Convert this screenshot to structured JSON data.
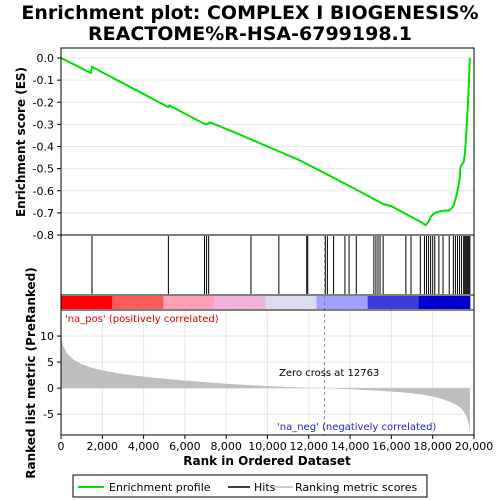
{
  "title_line1": "Enrichment plot: COMPLEX I BIOGENESIS%",
  "title_line2": "REACTOME%R-HSA-6799198.1",
  "colors": {
    "profile": "#00e000",
    "hits": "#000000",
    "metric": "#bebebe",
    "pos_label": "#dd0000",
    "neg_label": "#2222cc"
  },
  "chart_data": [
    {
      "type": "line",
      "panel": "enrichment",
      "ylabel": "Enrichment score (ES)",
      "ylim": [
        -0.8,
        0.0
      ],
      "yticks": [
        "0.0",
        "-0.1",
        "-0.2",
        "-0.3",
        "-0.4",
        "-0.5",
        "-0.6",
        "-0.7",
        "-0.8"
      ],
      "ytick_values": [
        0.0,
        -0.1,
        -0.2,
        -0.3,
        -0.4,
        -0.5,
        -0.6,
        -0.7,
        -0.8
      ],
      "xlim": [
        0,
        20000
      ],
      "grid": true,
      "series": [
        {
          "name": "Enrichment profile",
          "x": [
            0,
            1450,
            1500,
            5200,
            5250,
            6900,
            7050,
            7150,
            7200,
            8500,
            10000,
            11500,
            12763,
            14000,
            15000,
            15300,
            15600,
            16000,
            16300,
            16700,
            17000,
            17400,
            17650,
            17800,
            17900,
            18100,
            18300,
            18500,
            18800,
            19000,
            19100,
            19200,
            19300,
            19350,
            19500,
            19550,
            19600,
            19650,
            19700,
            19750,
            19800
          ],
          "y": [
            0.0,
            -0.068,
            -0.04,
            -0.222,
            -0.214,
            -0.296,
            -0.3,
            -0.296,
            -0.29,
            -0.34,
            -0.4,
            -0.46,
            -0.52,
            -0.58,
            -0.63,
            -0.645,
            -0.66,
            -0.67,
            -0.685,
            -0.705,
            -0.72,
            -0.74,
            -0.755,
            -0.74,
            -0.718,
            -0.7,
            -0.695,
            -0.69,
            -0.69,
            -0.67,
            -0.64,
            -0.6,
            -0.55,
            -0.49,
            -0.47,
            -0.44,
            -0.38,
            -0.3,
            -0.22,
            -0.12,
            0.0
          ]
        }
      ]
    },
    {
      "type": "hits",
      "panel": "hits",
      "name": "Hits",
      "x": [
        1500,
        5200,
        6950,
        7050,
        7150,
        9200,
        10550,
        11900,
        11950,
        12800,
        12900,
        13200,
        13750,
        13950,
        14300,
        15150,
        15250,
        15350,
        15450,
        15600,
        16700,
        16950,
        17400,
        17600,
        17700,
        17800,
        17900,
        18000,
        18100,
        18300,
        18500,
        18800,
        19000,
        19100,
        19200,
        19300,
        19400,
        19500,
        19550,
        19600,
        19650,
        19700,
        19750,
        19800
      ]
    },
    {
      "type": "heatmap",
      "panel": "ranking-colorbar",
      "x_range": [
        0,
        19800
      ],
      "zero_cross_rank": 12763,
      "colors": [
        "#ff0000",
        "#ff5a5a",
        "#ffa0b4",
        "#f0b4dc",
        "#dcdcf0",
        "#a0a0ff",
        "#3c3cdc",
        "#0000cc"
      ]
    },
    {
      "type": "area",
      "panel": "ranked-metric",
      "xlabel": "Rank in Ordered Dataset",
      "ylabel": "Ranked list metric (PreRanked)",
      "xlim": [
        0,
        20000
      ],
      "ylim": [
        -9,
        15
      ],
      "xticks": [
        "0",
        "2,000",
        "4,000",
        "6,000",
        "8,000",
        "10,000",
        "12,000",
        "14,000",
        "16,000",
        "18,000",
        "20,000"
      ],
      "xtick_values": [
        0,
        2000,
        4000,
        6000,
        8000,
        10000,
        12000,
        14000,
        16000,
        18000,
        20000
      ],
      "yticks": [
        "10",
        "5",
        "0",
        "-5"
      ],
      "ytick_values": [
        10,
        5,
        0,
        -5
      ],
      "grid": true,
      "x": [
        0,
        100,
        300,
        600,
        1000,
        1500,
        2000,
        3000,
        4000,
        5000,
        6000,
        7000,
        8000,
        9000,
        10000,
        11000,
        12000,
        12763,
        13500,
        14500,
        15500,
        16500,
        17000,
        17500,
        18000,
        18500,
        19000,
        19300,
        19500,
        19650,
        19750,
        19800
      ],
      "values": [
        10.0,
        8.2,
        6.6,
        5.5,
        4.6,
        3.9,
        3.4,
        2.7,
        2.2,
        1.8,
        1.45,
        1.15,
        0.85,
        0.6,
        0.4,
        0.22,
        0.08,
        0.0,
        -0.12,
        -0.3,
        -0.52,
        -0.8,
        -1.0,
        -1.25,
        -1.6,
        -2.1,
        -2.9,
        -3.6,
        -4.5,
        -5.6,
        -7.0,
        -8.3
      ],
      "annotations": {
        "pos_label": "'na_pos' (positively correlated)",
        "zero_cross": "Zero cross at 12763",
        "neg_label": "'na_neg' (negatively correlated)"
      }
    }
  ],
  "legend": {
    "items": [
      {
        "label": "Enrichment profile",
        "color": "#00e000"
      },
      {
        "label": "Hits",
        "color": "#000000"
      },
      {
        "label": "Ranking metric scores",
        "color": "#bebebe"
      }
    ]
  }
}
